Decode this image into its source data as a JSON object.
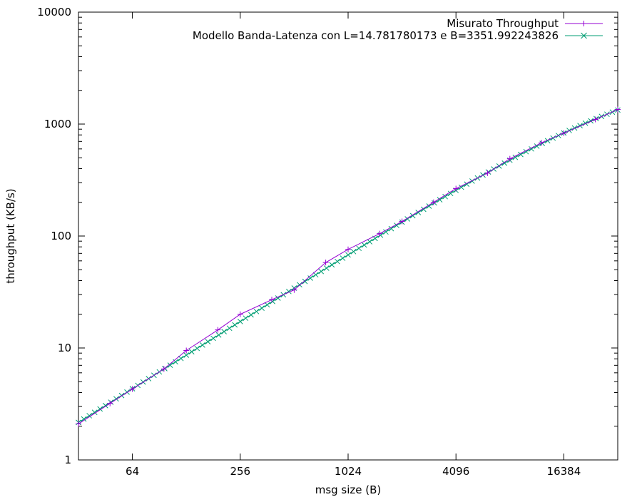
{
  "chart_data": {
    "type": "line",
    "title": "",
    "xlabel": "msg size (B)",
    "ylabel": "throughput (KB/s)",
    "x_scale": "log2",
    "y_scale": "log10",
    "xlim": [
      32,
      32768
    ],
    "ylim": [
      1,
      10000
    ],
    "x_ticks": [
      64,
      256,
      1024,
      4096,
      16384
    ],
    "x_tick_labels": [
      "64",
      "256",
      "1024",
      "4096",
      "16384"
    ],
    "y_ticks": [
      1,
      10,
      100,
      1000,
      10000
    ],
    "y_tick_labels": [
      "1",
      "10",
      "100",
      "1000",
      "10000"
    ],
    "grid": false,
    "legend_position": "top-right",
    "series": [
      {
        "name": "Misurato Throughput",
        "color": "#9400d3",
        "marker": "plus",
        "x": [
          32,
          48,
          64,
          96,
          128,
          192,
          256,
          384,
          512,
          768,
          1024,
          1536,
          2048,
          3072,
          4096,
          6144,
          8192,
          12288,
          16384,
          24576,
          32768
        ],
        "y": [
          2.1,
          3.2,
          4.3,
          6.5,
          9.5,
          14.5,
          20,
          27,
          33,
          58,
          76,
          105,
          135,
          200,
          265,
          365,
          490,
          680,
          830,
          1100,
          1350
        ]
      },
      {
        "name": "Modello Banda-Latenza con L=14.781780173 e B=3351.992243826",
        "color": "#009e73",
        "marker": "x",
        "model": {
          "L": 14.781780173,
          "B": 3351.992243826
        },
        "x_start": 32,
        "x_end": 32768,
        "points_per_octave": 10
      }
    ]
  }
}
